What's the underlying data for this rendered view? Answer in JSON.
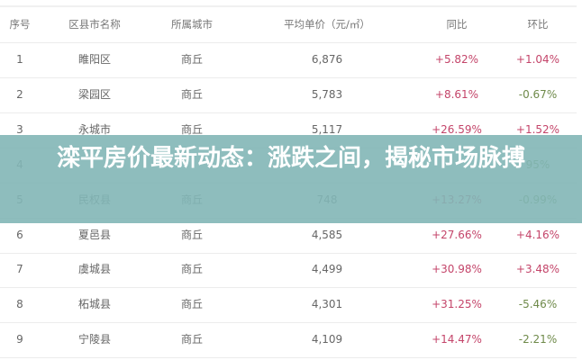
{
  "table": {
    "headers": [
      "序号",
      "区县市名称",
      "所属城市",
      "平均单价（元/㎡）",
      "同比",
      "环比"
    ],
    "rows": [
      {
        "no": "1",
        "name": "睢阳区",
        "city": "商丘",
        "price": "6,876",
        "yoy": "+5.82%",
        "mom": "+1.04%"
      },
      {
        "no": "2",
        "name": "梁园区",
        "city": "商丘",
        "price": "5,783",
        "yoy": "+8.61%",
        "mom": "-0.67%"
      },
      {
        "no": "3",
        "name": "永城市",
        "city": "商丘",
        "price": "5,117",
        "yoy": "+26.59%",
        "mom": "+1.52%"
      },
      {
        "no": "4",
        "name": "",
        "city": "",
        "price": "",
        "yoy": "",
        "mom": "95%"
      },
      {
        "no": "5",
        "name": "民权县",
        "city": "商丘",
        "price": "748",
        "yoy": "+13.27%",
        "mom": "-0.99%"
      },
      {
        "no": "6",
        "name": "夏邑县",
        "city": "商丘",
        "price": "4,585",
        "yoy": "+27.66%",
        "mom": "+4.16%"
      },
      {
        "no": "7",
        "name": "虞城县",
        "city": "商丘",
        "price": "4,499",
        "yoy": "+30.98%",
        "mom": "+3.48%"
      },
      {
        "no": "8",
        "name": "柘城县",
        "city": "商丘",
        "price": "4,301",
        "yoy": "+31.25%",
        "mom": "-5.46%"
      },
      {
        "no": "9",
        "name": "宁陵县",
        "city": "商丘",
        "price": "4,109",
        "yoy": "+14.47%",
        "mom": "-2.21%"
      }
    ]
  },
  "overlay": {
    "title": "滦平房价最新动态：涨跌之间，揭秘市场脉搏"
  },
  "colors": {
    "up": "#c4456a",
    "down": "#6f8a4a",
    "overlay": "#82b6b6"
  }
}
